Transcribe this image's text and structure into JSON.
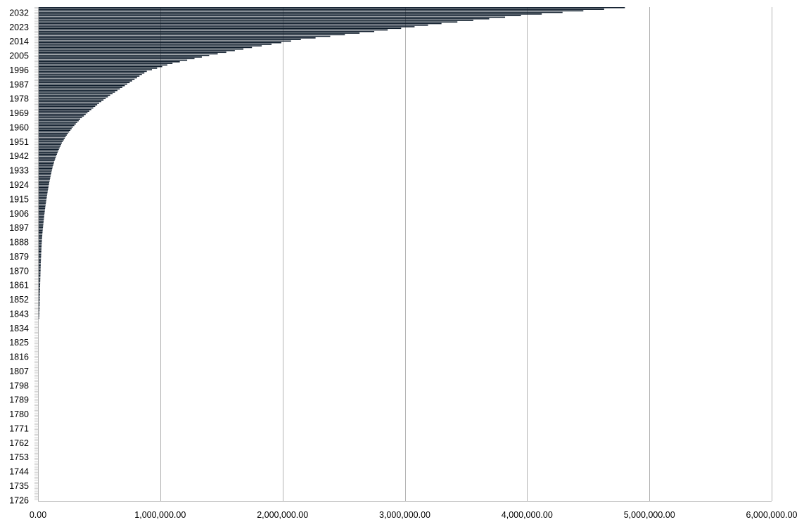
{
  "chart_data": {
    "type": "bar",
    "orientation": "horizontal",
    "title": "",
    "xlabel": "",
    "ylabel": "",
    "grid": true,
    "legend": "none",
    "colors": {
      "bar": "#0d1b2a",
      "grid": "#b3b3b3",
      "axis": "#b3b3b3"
    },
    "xlim": [
      0,
      6000000
    ],
    "x_ticks": [
      0,
      1000000,
      2000000,
      3000000,
      4000000,
      5000000,
      6000000
    ],
    "x_tick_labels": [
      "0.00",
      "1,000,000.00",
      "2,000,000.00",
      "3,000,000.00",
      "4,000,000.00",
      "5,000,000.00",
      "6,000,000.00"
    ],
    "y_range": [
      1726,
      2035
    ],
    "y_tick_labels": [
      "2032",
      "2023",
      "2014",
      "2005",
      "1996",
      "1987",
      "1978",
      "1969",
      "1960",
      "1951",
      "1942",
      "1933",
      "1924",
      "1915",
      "1906",
      "1897",
      "1888",
      "1879",
      "1870",
      "1861",
      "1852",
      "1843",
      "1834",
      "1825",
      "1816",
      "1807",
      "1798",
      "1789",
      "1780",
      "1771",
      "1762",
      "1753",
      "1744",
      "1735",
      "1726"
    ],
    "series": [
      {
        "values": [
          [
            1840,
            10000
          ],
          [
            1845,
            12000
          ],
          [
            1850,
            14000
          ],
          [
            1855,
            15000
          ],
          [
            1860,
            17000
          ],
          [
            1865,
            19000
          ],
          [
            1870,
            21000
          ],
          [
            1875,
            23000
          ],
          [
            1880,
            26000
          ],
          [
            1885,
            29000
          ],
          [
            1890,
            33000
          ],
          [
            1895,
            38000
          ],
          [
            1900,
            45000
          ],
          [
            1905,
            52000
          ],
          [
            1910,
            60000
          ],
          [
            1915,
            70000
          ],
          [
            1920,
            80000
          ],
          [
            1925,
            92000
          ],
          [
            1930,
            105000
          ],
          [
            1935,
            120000
          ],
          [
            1940,
            140000
          ],
          [
            1945,
            165000
          ],
          [
            1950,
            195000
          ],
          [
            1955,
            235000
          ],
          [
            1960,
            285000
          ],
          [
            1965,
            345000
          ],
          [
            1970,
            420000
          ],
          [
            1975,
            500000
          ],
          [
            1980,
            590000
          ],
          [
            1985,
            690000
          ],
          [
            1990,
            790000
          ],
          [
            1995,
            890000
          ],
          [
            2000,
            1100000
          ],
          [
            2005,
            1400000
          ],
          [
            2010,
            1750000
          ],
          [
            2015,
            2150000
          ],
          [
            2020,
            2750000
          ],
          [
            2025,
            3300000
          ],
          [
            2030,
            3950000
          ],
          [
            2035,
            4800000
          ]
        ]
      }
    ]
  }
}
